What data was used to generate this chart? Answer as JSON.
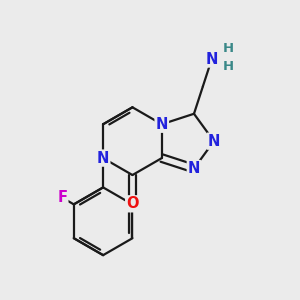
{
  "background_color": "#ebebeb",
  "bond_color": "#1a1a1a",
  "bond_width": 1.6,
  "atom_colors": {
    "N": "#2222dd",
    "O": "#ee1111",
    "F": "#cc00cc",
    "H": "#3a8888",
    "C": "#1a1a1a"
  },
  "font_size": 10.5,
  "font_size_H": 9.5
}
